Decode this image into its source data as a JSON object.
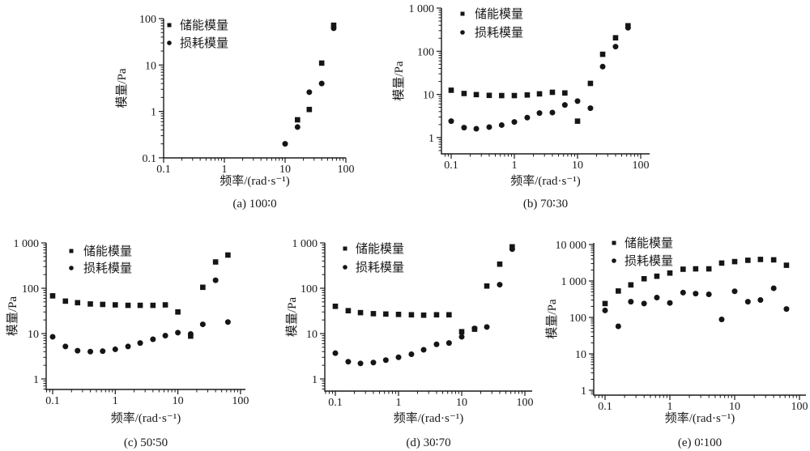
{
  "figure": {
    "ylabel": "模量/Pa",
    "xlabel": "频率/(rad·s⁻¹)",
    "legend": [
      {
        "label": "储能模量",
        "marker": "square"
      },
      {
        "label": "损耗模量",
        "marker": "circle"
      }
    ],
    "marker_color": "#151515"
  },
  "chart_data": [
    {
      "id": "a",
      "type": "scatter",
      "caption": "(a) 100∶0",
      "xscale": "log",
      "yscale": "log",
      "xlabel": "频率/(rad·s⁻¹)",
      "ylabel": "模量/Pa",
      "xlim": [
        0.1,
        100
      ],
      "ylim": [
        0.1,
        100
      ],
      "xtick_values": [
        0.1,
        1,
        10,
        100
      ],
      "xtick_labels": [
        "0.1",
        "1",
        "10",
        "100"
      ],
      "ytick_values": [
        100,
        10,
        1,
        0.1
      ],
      "ytick_labels": [
        "100",
        "10",
        "1",
        "0.1"
      ],
      "legend": [
        "储能模量",
        "损耗模量"
      ],
      "series": [
        {
          "name": "储能模量",
          "marker": "square",
          "points": [
            [
              16,
              0.66
            ],
            [
              25,
              1.1
            ],
            [
              40,
              11
            ],
            [
              63,
              72
            ]
          ]
        },
        {
          "name": "损耗模量",
          "marker": "circle",
          "points": [
            [
              10,
              0.2
            ],
            [
              16,
              0.46
            ],
            [
              25,
              2.6
            ],
            [
              40,
              4.0
            ],
            [
              63,
              62
            ]
          ]
        }
      ]
    },
    {
      "id": "b",
      "type": "scatter",
      "caption": "(b) 70∶30",
      "xscale": "log",
      "yscale": "log",
      "xlabel": "频率/(rad·s⁻¹)",
      "ylabel": "模量/Pa",
      "xlim": [
        0.1,
        100
      ],
      "ylim": [
        1,
        1000
      ],
      "xtick_values": [
        0.1,
        1,
        10,
        100
      ],
      "xtick_labels": [
        "0.1",
        "1",
        "10",
        "100"
      ],
      "ytick_values": [
        1000,
        100,
        10,
        1
      ],
      "ytick_labels": [
        "1 000",
        "100",
        "10",
        "1"
      ],
      "legend": [
        "储能模量",
        "损耗模量"
      ],
      "series": [
        {
          "name": "储能模量",
          "marker": "square",
          "points": [
            [
              0.1,
              12.5
            ],
            [
              0.16,
              10.5
            ],
            [
              0.25,
              9.9
            ],
            [
              0.4,
              9.5
            ],
            [
              0.63,
              9.4
            ],
            [
              1,
              9.4
            ],
            [
              1.6,
              9.7
            ],
            [
              2.5,
              10.3
            ],
            [
              4,
              11.2
            ],
            [
              6.3,
              10.8
            ],
            [
              10,
              2.4
            ],
            [
              16,
              18
            ],
            [
              25,
              85
            ],
            [
              40,
              205
            ],
            [
              63,
              390
            ]
          ]
        },
        {
          "name": "损耗模量",
          "marker": "circle",
          "points": [
            [
              0.1,
              2.4
            ],
            [
              0.16,
              1.7
            ],
            [
              0.25,
              1.6
            ],
            [
              0.4,
              1.75
            ],
            [
              0.63,
              1.95
            ],
            [
              1,
              2.3
            ],
            [
              1.6,
              2.9
            ],
            [
              2.5,
              3.7
            ],
            [
              4,
              3.8
            ],
            [
              6.3,
              5.7
            ],
            [
              10,
              7.0
            ],
            [
              16,
              4.8
            ],
            [
              25,
              44
            ],
            [
              40,
              128
            ],
            [
              63,
              350
            ]
          ]
        }
      ]
    },
    {
      "id": "c",
      "type": "scatter",
      "caption": "(c) 50∶50",
      "xscale": "log",
      "yscale": "log",
      "xlabel": "频率/(rad·s⁻¹)",
      "ylabel": "模量/Pa",
      "xlim": [
        0.1,
        100
      ],
      "ylim": [
        1,
        1000
      ],
      "xtick_values": [
        0.1,
        1,
        10,
        100
      ],
      "xtick_labels": [
        "0.1",
        "1",
        "10",
        "100"
      ],
      "ytick_values": [
        1000,
        100,
        10,
        1
      ],
      "ytick_labels": [
        "1 000",
        "100",
        "10",
        "1"
      ],
      "legend": [
        "储能模量",
        "损耗模量"
      ],
      "series": [
        {
          "name": "储能模量",
          "marker": "square",
          "points": [
            [
              0.1,
              68
            ],
            [
              0.16,
              52
            ],
            [
              0.25,
              48
            ],
            [
              0.4,
              45
            ],
            [
              0.63,
              44
            ],
            [
              1,
              43
            ],
            [
              1.6,
              42
            ],
            [
              2.5,
              42
            ],
            [
              4,
              42
            ],
            [
              6.3,
              43
            ],
            [
              10,
              30
            ],
            [
              16,
              8.8
            ],
            [
              25,
              105
            ],
            [
              40,
              380
            ],
            [
              63,
              540
            ]
          ]
        },
        {
          "name": "损耗模量",
          "marker": "circle",
          "points": [
            [
              0.1,
              8.5
            ],
            [
              0.16,
              5.2
            ],
            [
              0.25,
              4.2
            ],
            [
              0.4,
              4.0
            ],
            [
              0.63,
              4.1
            ],
            [
              1,
              4.5
            ],
            [
              1.6,
              5.2
            ],
            [
              2.5,
              6.2
            ],
            [
              4,
              7.5
            ],
            [
              6.3,
              9.0
            ],
            [
              10,
              10.5
            ],
            [
              16,
              9.8
            ],
            [
              25,
              16
            ],
            [
              40,
              150
            ],
            [
              63,
              18
            ]
          ]
        }
      ]
    },
    {
      "id": "d",
      "type": "scatter",
      "caption": "(d) 30∶70",
      "xscale": "log",
      "yscale": "log",
      "xlabel": "频率/(rad·s⁻¹)",
      "ylabel": "模量/Pa",
      "xlim": [
        0.1,
        100
      ],
      "ylim": [
        1,
        1000
      ],
      "xtick_values": [
        0.1,
        1,
        10,
        100
      ],
      "xtick_labels": [
        "0.1",
        "1",
        "10",
        "100"
      ],
      "ytick_values": [
        1000,
        100,
        10,
        1
      ],
      "ytick_labels": [
        "1 000",
        "100",
        "10",
        "1"
      ],
      "legend": [
        "储能模量",
        "损耗模量"
      ],
      "series": [
        {
          "name": "储能模量",
          "marker": "square",
          "points": [
            [
              0.1,
              40
            ],
            [
              0.16,
              32
            ],
            [
              0.25,
              29
            ],
            [
              0.4,
              27.5
            ],
            [
              0.63,
              27
            ],
            [
              1,
              26.5
            ],
            [
              1.6,
              26
            ],
            [
              2.5,
              25.5
            ],
            [
              4,
              26
            ],
            [
              6.3,
              26
            ],
            [
              10,
              11
            ],
            [
              16,
              12.5
            ],
            [
              25,
              112
            ],
            [
              40,
              340
            ],
            [
              63,
              820
            ]
          ]
        },
        {
          "name": "损耗模量",
          "marker": "circle",
          "points": [
            [
              0.1,
              3.7
            ],
            [
              0.16,
              2.4
            ],
            [
              0.25,
              2.2
            ],
            [
              0.4,
              2.3
            ],
            [
              0.63,
              2.6
            ],
            [
              1,
              3.0
            ],
            [
              1.6,
              3.5
            ],
            [
              2.5,
              4.4
            ],
            [
              4,
              5.8
            ],
            [
              6.3,
              6.2
            ],
            [
              10,
              8.5
            ],
            [
              16,
              13
            ],
            [
              25,
              14
            ],
            [
              40,
              120
            ],
            [
              63,
              730
            ]
          ]
        }
      ]
    },
    {
      "id": "e",
      "type": "scatter",
      "caption": "(e) 0∶100",
      "xscale": "log",
      "yscale": "log",
      "xlabel": "频率/(rad·s⁻¹)",
      "ylabel": "模量/Pa",
      "xlim": [
        0.1,
        100
      ],
      "ylim": [
        1,
        10000
      ],
      "xtick_values": [
        0.1,
        1,
        10,
        100
      ],
      "xtick_labels": [
        "0.1",
        "1",
        "10",
        "100"
      ],
      "ytick_values": [
        10000,
        1000,
        100,
        10,
        1
      ],
      "ytick_labels": [
        "10 000",
        "1 000",
        "100",
        "10",
        "1"
      ],
      "legend": [
        "储能模量",
        "损耗模量"
      ],
      "series": [
        {
          "name": "储能模量",
          "marker": "square",
          "points": [
            [
              0.1,
              240
            ],
            [
              0.16,
              530
            ],
            [
              0.25,
              780
            ],
            [
              0.4,
              1150
            ],
            [
              0.63,
              1350
            ],
            [
              1,
              1650
            ],
            [
              1.6,
              2100
            ],
            [
              2.5,
              2150
            ],
            [
              4,
              2150
            ],
            [
              6.3,
              3100
            ],
            [
              10,
              3400
            ],
            [
              16,
              3700
            ],
            [
              25,
              3900
            ],
            [
              40,
              3800
            ],
            [
              63,
              2700
            ]
          ]
        },
        {
          "name": "损耗模量",
          "marker": "circle",
          "points": [
            [
              0.1,
              155
            ],
            [
              0.16,
              57
            ],
            [
              0.25,
              270
            ],
            [
              0.4,
              240
            ],
            [
              0.63,
              350
            ],
            [
              1,
              250
            ],
            [
              1.6,
              480
            ],
            [
              2.5,
              450
            ],
            [
              4,
              430
            ],
            [
              6.3,
              88
            ],
            [
              10,
              520
            ],
            [
              16,
              270
            ],
            [
              25,
              300
            ],
            [
              40,
              630
            ],
            [
              63,
              170
            ]
          ]
        }
      ]
    }
  ]
}
